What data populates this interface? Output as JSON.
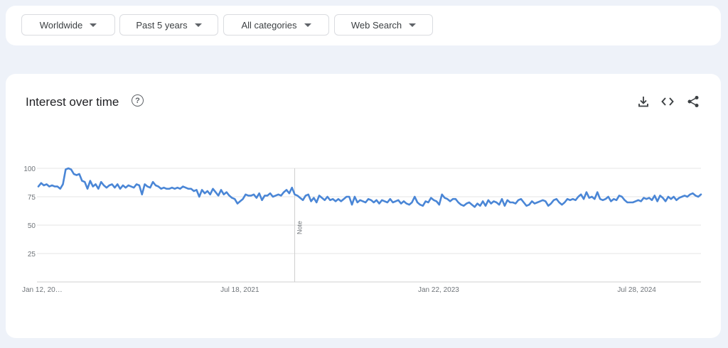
{
  "filters": [
    {
      "label": "Worldwide"
    },
    {
      "label": "Past 5 years"
    },
    {
      "label": "All categories"
    },
    {
      "label": "Web Search"
    }
  ],
  "card": {
    "title": "Interest over time",
    "help_icon": "help-circle-icon",
    "tools": [
      "download-icon",
      "embed-code-icon",
      "share-icon"
    ]
  },
  "colors": {
    "line": "#4a86d6",
    "grid": "#e6e6e6",
    "axis": "#d0d0d0",
    "tick_text": "#70757a"
  },
  "chart_data": {
    "type": "line",
    "title": "",
    "xlabel": "",
    "ylabel": "",
    "ylim": [
      0,
      100
    ],
    "grid": true,
    "y_ticks": [
      100,
      75,
      50,
      25
    ],
    "x_tick_labels": [
      "Jan 12, 20…",
      "Jul 18, 2021",
      "Jan 22, 2023",
      "Jul 28, 2024"
    ],
    "annotation": {
      "label": "Note",
      "after_week": 94
    },
    "series": [
      {
        "name": "",
        "values": [
          84,
          87,
          85,
          86,
          84,
          85,
          84,
          84,
          82,
          86,
          99,
          100,
          99,
          95,
          94,
          95,
          89,
          88,
          82,
          89,
          84,
          86,
          82,
          88,
          85,
          83,
          85,
          86,
          83,
          86,
          82,
          85,
          83,
          85,
          84,
          83,
          86,
          85,
          77,
          86,
          84,
          83,
          88,
          85,
          84,
          82,
          83,
          82,
          82,
          83,
          82,
          83,
          82,
          84,
          83,
          82,
          82,
          80,
          81,
          75,
          81,
          78,
          80,
          77,
          82,
          79,
          76,
          81,
          77,
          79,
          76,
          74,
          73,
          69,
          71,
          73,
          77,
          76,
          76,
          77,
          74,
          78,
          72,
          76,
          76,
          78,
          75,
          76,
          77,
          76,
          79,
          81,
          78,
          83,
          77,
          76,
          74,
          72,
          76,
          77,
          71,
          74,
          70,
          76,
          74,
          72,
          75,
          72,
          73,
          71,
          73,
          71,
          73,
          75,
          75,
          68,
          75,
          70,
          72,
          71,
          70,
          73,
          72,
          70,
          72,
          69,
          72,
          71,
          70,
          73,
          70,
          71,
          72,
          69,
          71,
          69,
          68,
          70,
          75,
          70,
          68,
          67,
          71,
          70,
          74,
          72,
          71,
          68,
          77,
          74,
          73,
          71,
          73,
          73,
          70,
          68,
          67,
          69,
          70,
          68,
          66,
          69,
          67,
          71,
          67,
          72,
          69,
          71,
          70,
          68,
          73,
          67,
          72,
          70,
          70,
          69,
          72,
          73,
          70,
          67,
          68,
          71,
          69,
          70,
          71,
          72,
          71,
          67,
          69,
          72,
          73,
          70,
          68,
          70,
          73,
          72,
          73,
          72,
          75,
          77,
          73,
          79,
          74,
          75,
          73,
          79,
          73,
          72,
          73,
          75,
          71,
          73,
          72,
          76,
          75,
          72,
          70,
          70,
          70,
          71,
          72,
          71,
          74,
          73,
          74,
          72,
          76,
          71,
          76,
          74,
          71,
          75,
          73,
          75,
          72,
          74,
          75,
          76,
          75,
          77,
          78,
          76,
          75,
          77
        ]
      }
    ]
  }
}
